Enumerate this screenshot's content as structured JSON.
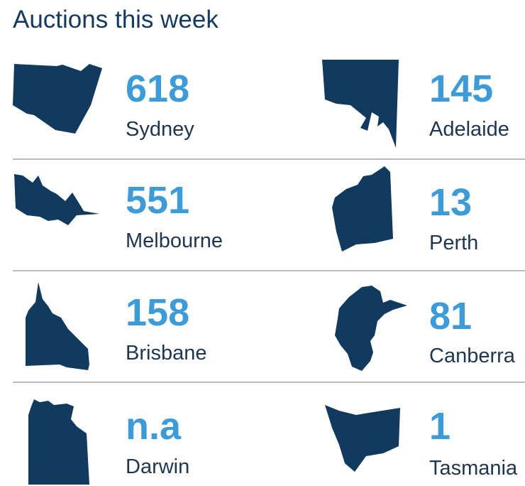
{
  "title": "Auctions this week",
  "colors": {
    "shape": "#113a5e",
    "number": "#3d9bd7",
    "text": "#1f3550",
    "divider": "#b9bec4"
  },
  "cities": [
    {
      "name": "Sydney",
      "count": "618",
      "icon": "nsw-state-map-icon"
    },
    {
      "name": "Adelaide",
      "count": "145",
      "icon": "sa-state-map-icon"
    },
    {
      "name": "Melbourne",
      "count": "551",
      "icon": "vic-state-map-icon"
    },
    {
      "name": "Perth",
      "count": "13",
      "icon": "wa-state-map-icon"
    },
    {
      "name": "Brisbane",
      "count": "158",
      "icon": "qld-state-map-icon"
    },
    {
      "name": "Canberra",
      "count": "81",
      "icon": "act-territory-map-icon"
    },
    {
      "name": "Darwin",
      "count": "n.a",
      "icon": "nt-territory-map-icon"
    },
    {
      "name": "Tasmania",
      "count": "1",
      "icon": "tas-state-map-icon"
    }
  ]
}
